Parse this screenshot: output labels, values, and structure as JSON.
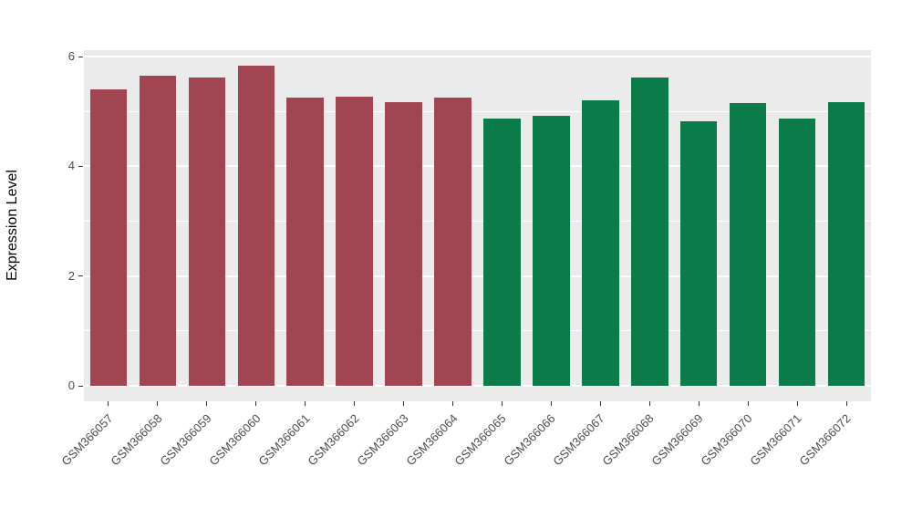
{
  "chart_data": {
    "type": "bar",
    "title": "",
    "xlabel": "",
    "ylabel": "Expression Level",
    "ylim": [
      0,
      6.12
    ],
    "yticks": [
      0,
      2,
      4,
      6
    ],
    "minor_yticks": [
      1,
      3,
      5
    ],
    "grid": true,
    "legend_position": "none",
    "panel_bg": "#EBEBEB",
    "grid_color": "#FFFFFF",
    "categories": [
      "GSM366057",
      "GSM366058",
      "GSM366059",
      "GSM366060",
      "GSM366061",
      "GSM366062",
      "GSM366063",
      "GSM366064",
      "GSM366065",
      "GSM366066",
      "GSM366067",
      "GSM366068",
      "GSM366069",
      "GSM366070",
      "GSM366071",
      "GSM366072"
    ],
    "values": [
      5.4,
      5.65,
      5.62,
      5.83,
      5.25,
      5.27,
      5.17,
      5.25,
      4.87,
      4.92,
      5.2,
      5.62,
      4.83,
      5.15,
      4.87,
      5.17
    ],
    "bar_colors": [
      "#A04552",
      "#A04552",
      "#A04552",
      "#A04552",
      "#A04552",
      "#A04552",
      "#A04552",
      "#A04552",
      "#0A7B49",
      "#0A7B49",
      "#0A7B49",
      "#0A7B49",
      "#0A7B49",
      "#0A7B49",
      "#0A7B49",
      "#0A7B49"
    ]
  }
}
